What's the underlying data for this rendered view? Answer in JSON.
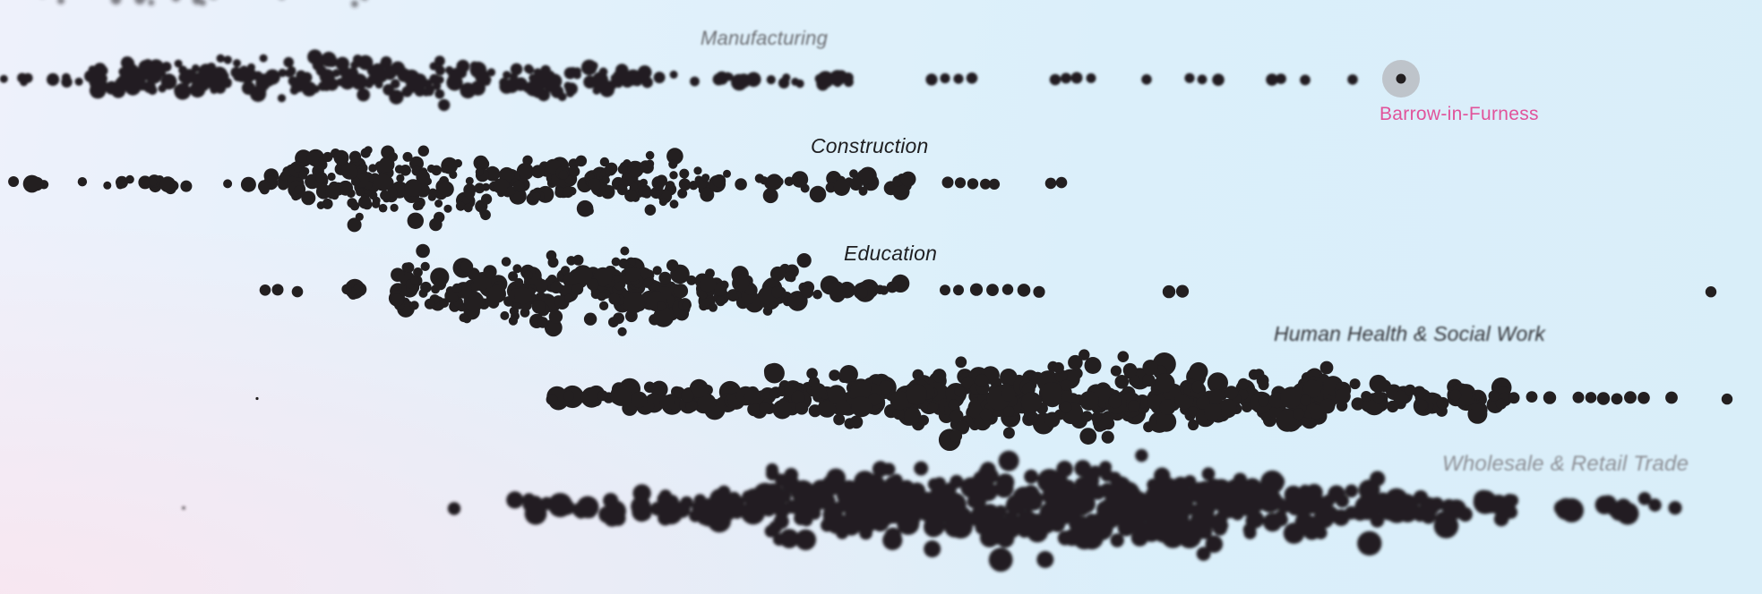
{
  "chart_data": {
    "type": "scatter",
    "style": "beeswarm",
    "title": "",
    "xlabel": "",
    "ylabel": "",
    "legend": "none",
    "grid": false,
    "dot_color": "#231f20",
    "highlight_color": "#e1539b",
    "series": [
      {
        "name": "",
        "role": "faint-top-row",
        "bands": [
          [
            15,
            280,
            0.5
          ],
          [
            300,
            420,
            0.4
          ]
        ]
      },
      {
        "name": "Manufacturing",
        "bands": [
          [
            0,
            100,
            0.8
          ],
          [
            100,
            500,
            4.5
          ],
          [
            500,
            700,
            3.5
          ],
          [
            700,
            950,
            1.3
          ]
        ],
        "outliers": [
          1040,
          1055,
          1070,
          1085,
          1178,
          1190,
          1202,
          1218,
          1280,
          1328,
          1342,
          1360,
          1420,
          1430,
          1457,
          1510
        ],
        "highlight": {
          "x": 1564,
          "label": "Barrow-in-Furness"
        }
      },
      {
        "name": "Construction",
        "bands": [
          [
            0,
            60,
            0.6
          ],
          [
            60,
            210,
            0.9
          ],
          [
            250,
            320,
            1.6
          ],
          [
            320,
            560,
            6.5
          ],
          [
            560,
            760,
            5.0
          ],
          [
            760,
            1015,
            2.2
          ]
        ],
        "outliers": [
          1058,
          1072,
          1086,
          1100,
          1110,
          1173,
          1185
        ]
      },
      {
        "name": "Education",
        "bands": [
          [
            375,
            440,
            0.8
          ],
          [
            440,
            560,
            5.5
          ],
          [
            560,
            760,
            7.0
          ],
          [
            760,
            900,
            4.5
          ],
          [
            900,
            1010,
            1.5
          ]
        ],
        "outliers": [
          296,
          310,
          332,
          1055,
          1070,
          1090,
          1108,
          1125,
          1143,
          1160,
          1305,
          1320,
          1910
        ]
      },
      {
        "name": "Human Health & Social Work",
        "bands": [
          [
            615,
            690,
            1.4
          ],
          [
            690,
            860,
            2.6
          ],
          [
            860,
            1060,
            4.8
          ],
          [
            1060,
            1300,
            6.8
          ],
          [
            1300,
            1500,
            5.2
          ],
          [
            1500,
            1680,
            2.6
          ]
        ],
        "outliers": [
          287,
          616,
          1690,
          1710,
          1730,
          1762,
          1776,
          1790,
          1805,
          1820,
          1835,
          1866,
          1928
        ]
      },
      {
        "name": "Wholesale & Retail Trade",
        "bands": [
          [
            570,
            680,
            1.4
          ],
          [
            680,
            860,
            2.4
          ],
          [
            860,
            1100,
            6.0
          ],
          [
            1100,
            1360,
            7.2
          ],
          [
            1360,
            1540,
            5.0
          ],
          [
            1540,
            1690,
            2.6
          ],
          [
            1720,
            1850,
            1.2
          ]
        ],
        "outliers": [
          205,
          507,
          1870
        ]
      }
    ]
  }
}
